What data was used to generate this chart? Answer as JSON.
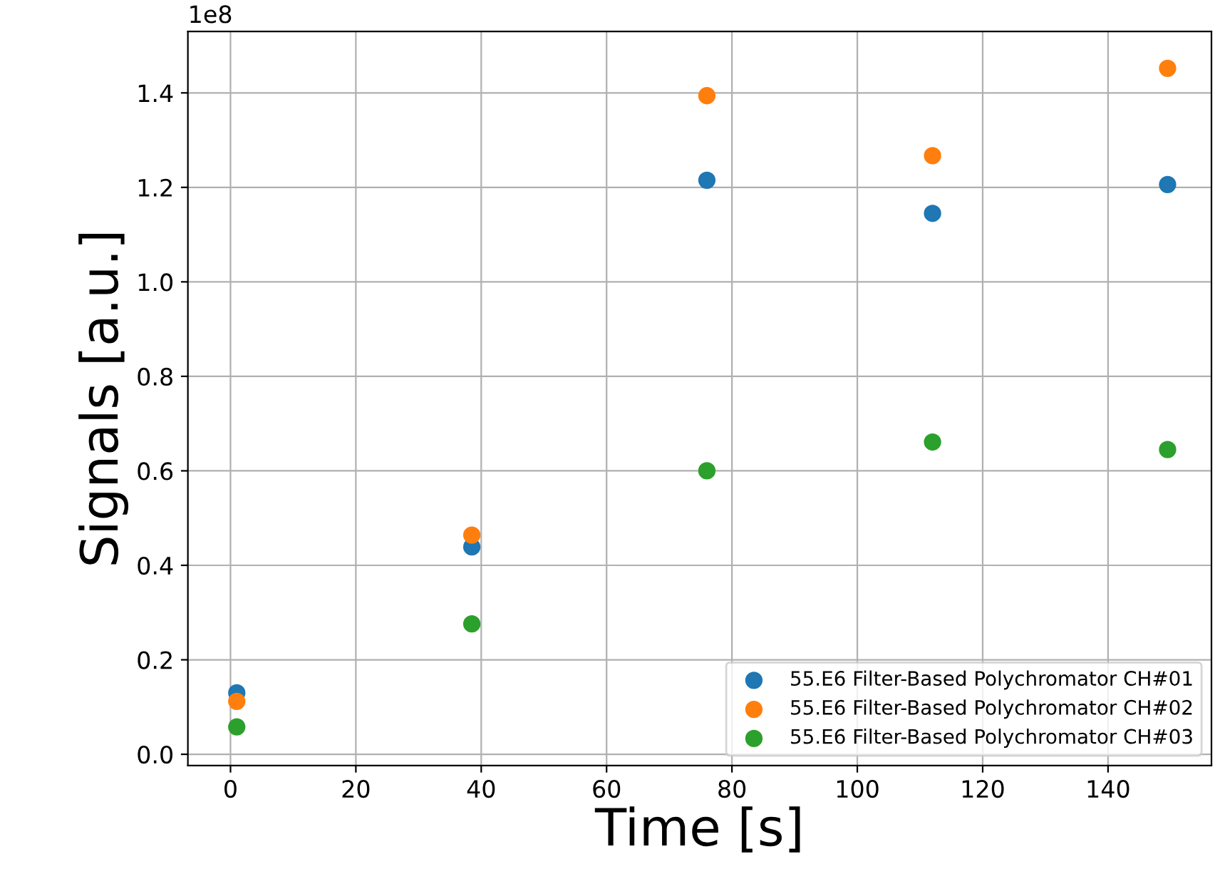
{
  "chart_data": {
    "type": "scatter",
    "xlabel": "Time [s]",
    "ylabel": "Signals [a.u.]",
    "annotations": [
      "1e8"
    ],
    "x": [
      1,
      38.5,
      76,
      112,
      149.5
    ],
    "series": [
      {
        "name": "55.E6 Filter-Based Polychromator CH#01",
        "color": "#1f77b4",
        "values": [
          0.13,
          0.439,
          1.215,
          1.145,
          1.206
        ]
      },
      {
        "name": "55.E6 Filter-Based Polychromator CH#02",
        "color": "#ff7f0e",
        "values": [
          0.112,
          0.464,
          1.394,
          1.267,
          1.452
        ]
      },
      {
        "name": "55.E6 Filter-Based Polychromator CH#03",
        "color": "#2ca02c",
        "values": [
          0.058,
          0.276,
          0.6,
          0.661,
          0.645
        ]
      }
    ],
    "xlim": [
      -6.8,
      156.5
    ],
    "xticks": [
      0,
      20,
      40,
      60,
      80,
      100,
      120,
      140
    ],
    "ylim": [
      -0.024,
      1.53
    ],
    "yticks": [
      {
        "value": 0,
        "label": "0.0"
      },
      0.2,
      0.4,
      0.6,
      0.8,
      {
        "value": 1,
        "label": "1.0"
      },
      1.2,
      1.4
    ],
    "grid": true,
    "legend": "bottom right",
    "marker": "circle"
  }
}
